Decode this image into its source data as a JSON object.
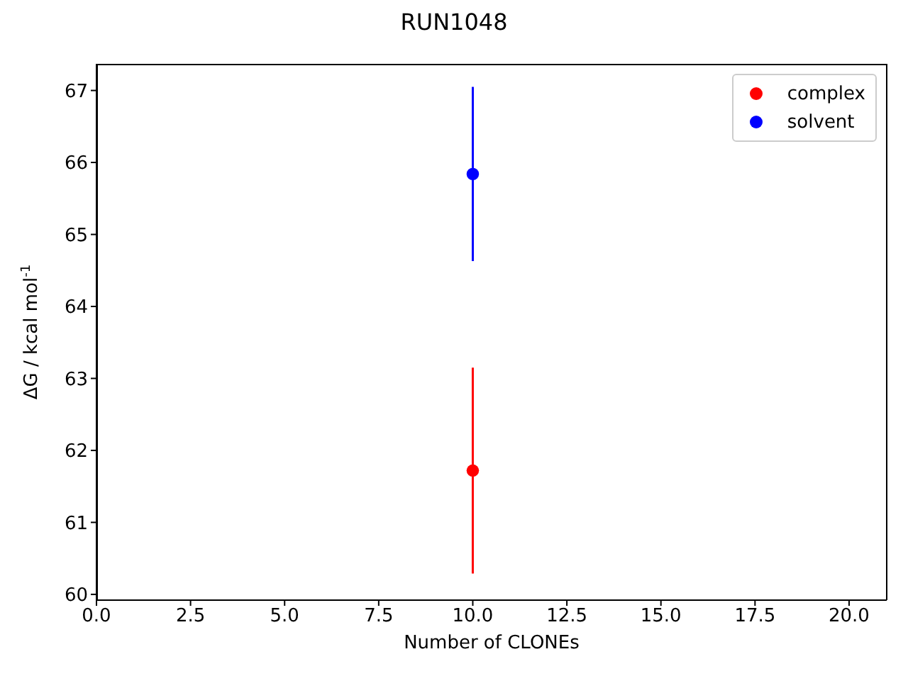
{
  "chart_data": {
    "type": "scatter",
    "title": "RUN1048",
    "xlabel": "Number of CLONEs",
    "ylabel": "ΔG / kcal mol$^{-1}$",
    "x": [
      10
    ],
    "series": [
      {
        "name": "complex",
        "color": "#ff0000",
        "values": [
          61.72
        ],
        "errors": [
          1.43
        ]
      },
      {
        "name": "solvent",
        "color": "#0000ff",
        "values": [
          65.84
        ],
        "errors": [
          1.21
        ]
      }
    ],
    "xlim": [
      0,
      21
    ],
    "xticks": [
      {
        "value": 0,
        "label": "0.0"
      },
      {
        "value": 2.5,
        "label": "2.5"
      },
      {
        "value": 5,
        "label": "5.0"
      },
      {
        "value": 7.5,
        "label": "7.5"
      },
      {
        "value": 10,
        "label": "10.0"
      },
      {
        "value": 12.5,
        "label": "12.5"
      },
      {
        "value": 15,
        "label": "15.0"
      },
      {
        "value": 17.5,
        "label": "17.5"
      },
      {
        "value": 20,
        "label": "20.0"
      }
    ],
    "ylim": [
      59.92,
      67.37
    ],
    "yticks": [
      60,
      61,
      62,
      63,
      64,
      65,
      66,
      67
    ],
    "legend": "top right",
    "marker": "circle",
    "grid": false
  }
}
